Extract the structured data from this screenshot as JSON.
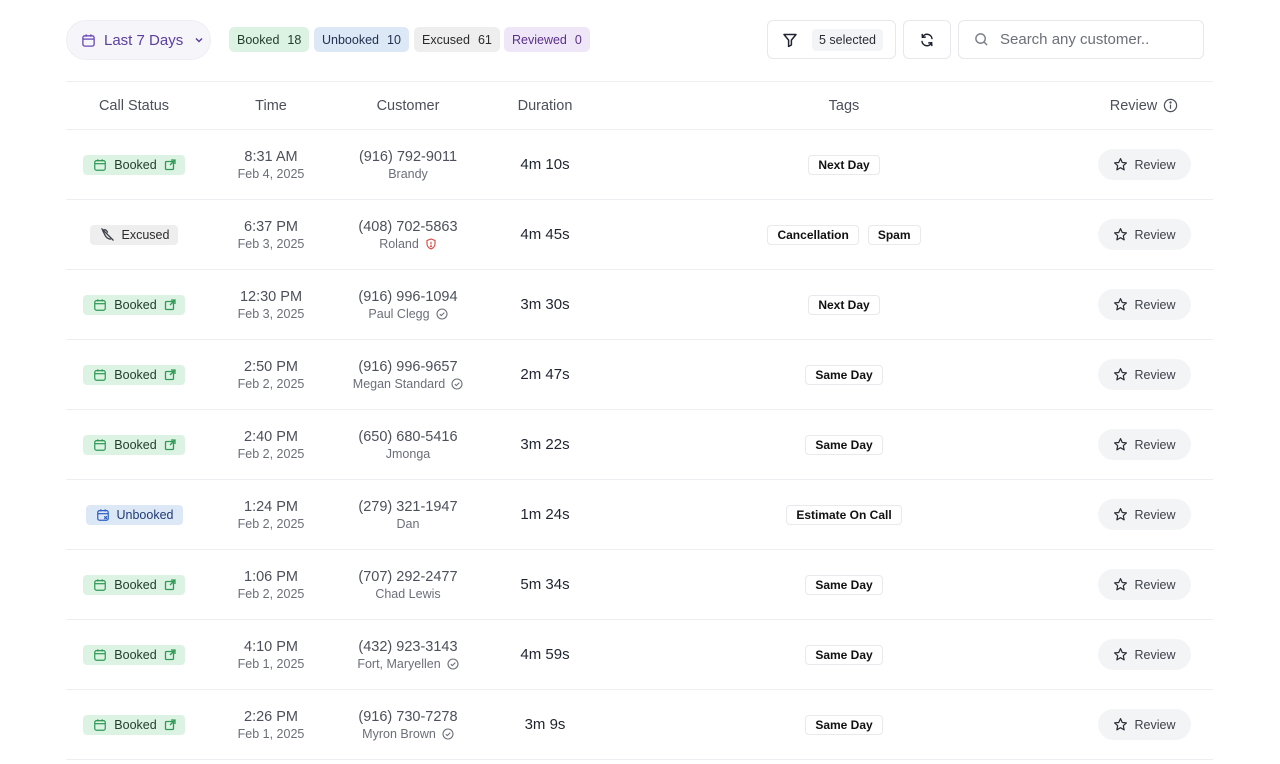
{
  "toolbar": {
    "date_range_label": "Last 7 Days",
    "chips": [
      {
        "label": "Booked",
        "count": "18"
      },
      {
        "label": "Unbooked",
        "count": "10"
      },
      {
        "label": "Excused",
        "count": "61"
      },
      {
        "label": "Reviewed",
        "count": "0"
      }
    ],
    "filter_selected_label": "5 selected",
    "search_placeholder": "Search any customer.."
  },
  "table": {
    "headers": {
      "status": "Call Status",
      "time": "Time",
      "customer": "Customer",
      "duration": "Duration",
      "tags": "Tags",
      "review": "Review"
    },
    "review_button_label": "Review",
    "rows": [
      {
        "status": "Booked",
        "status_kind": "booked",
        "time": "8:31 AM",
        "date": "Feb 4, 2025",
        "phone": "(916) 792-9011",
        "name": "Brandy",
        "name_icon": "none",
        "duration": "4m 10s",
        "tags": [
          "Next Day"
        ]
      },
      {
        "status": "Excused",
        "status_kind": "excused",
        "time": "6:37 PM",
        "date": "Feb 3, 2025",
        "phone": "(408) 702-5863",
        "name": "Roland",
        "name_icon": "shield-alert-icon",
        "duration": "4m 45s",
        "tags": [
          "Cancellation",
          "Spam"
        ]
      },
      {
        "status": "Booked",
        "status_kind": "booked",
        "time": "12:30 PM",
        "date": "Feb 3, 2025",
        "phone": "(916) 996-1094",
        "name": "Paul Clegg",
        "name_icon": "verified-check-icon",
        "duration": "3m 30s",
        "tags": [
          "Next Day"
        ]
      },
      {
        "status": "Booked",
        "status_kind": "booked",
        "time": "2:50 PM",
        "date": "Feb 2, 2025",
        "phone": "(916) 996-9657",
        "name": "Megan Standard",
        "name_icon": "verified-check-icon",
        "duration": "2m 47s",
        "tags": [
          "Same Day"
        ]
      },
      {
        "status": "Booked",
        "status_kind": "booked",
        "time": "2:40 PM",
        "date": "Feb 2, 2025",
        "phone": "(650) 680-5416",
        "name": "Jmonga",
        "name_icon": "none",
        "duration": "3m 22s",
        "tags": [
          "Same Day"
        ]
      },
      {
        "status": "Unbooked",
        "status_kind": "unbooked",
        "time": "1:24 PM",
        "date": "Feb 2, 2025",
        "phone": "(279) 321-1947",
        "name": "Dan",
        "name_icon": "none",
        "duration": "1m 24s",
        "tags": [
          "Estimate On Call"
        ]
      },
      {
        "status": "Booked",
        "status_kind": "booked",
        "time": "1:06 PM",
        "date": "Feb 2, 2025",
        "phone": "(707) 292-2477",
        "name": "Chad Lewis",
        "name_icon": "none",
        "duration": "5m 34s",
        "tags": [
          "Same Day"
        ]
      },
      {
        "status": "Booked",
        "status_kind": "booked",
        "time": "4:10 PM",
        "date": "Feb 1, 2025",
        "phone": "(432) 923-3143",
        "name": "Fort, Maryellen",
        "name_icon": "verified-check-icon",
        "duration": "4m 59s",
        "tags": [
          "Same Day"
        ]
      },
      {
        "status": "Booked",
        "status_kind": "booked",
        "time": "2:26 PM",
        "date": "Feb 1, 2025",
        "phone": "(916) 730-7278",
        "name": "Myron Brown",
        "name_icon": "verified-check-icon",
        "duration": "3m 9s",
        "tags": [
          "Same Day"
        ]
      }
    ]
  },
  "colors": {
    "booked_bg": "#dcf3e3",
    "booked_fg": "#2f9a55",
    "unbooked_bg": "#dde8f7",
    "unbooked_fg": "#2f5fc2",
    "excused_bg": "#eeeeee",
    "reviewed_bg": "#efe7f8",
    "accent_purple": "#5b3fa0",
    "alert_red": "#d9443c"
  }
}
